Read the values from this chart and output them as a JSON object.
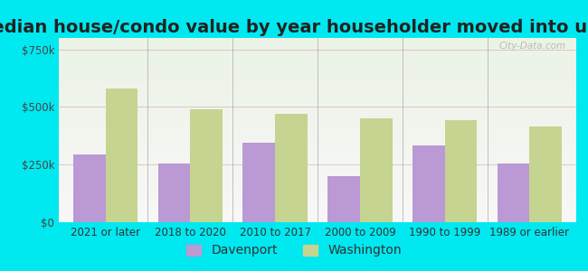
{
  "title": "Median house/condo value by year householder moved into unit",
  "categories": [
    "2021 or later",
    "2018 to 2020",
    "2010 to 2017",
    "2000 to 2009",
    "1990 to 1999",
    "1989 or earlier"
  ],
  "davenport": [
    295000,
    255000,
    345000,
    200000,
    335000,
    255000
  ],
  "washington": [
    580000,
    490000,
    470000,
    450000,
    445000,
    415000
  ],
  "davenport_color": "#bb99d4",
  "washington_color": "#c5d490",
  "background_outer": "#00e8f0",
  "background_inner": "#ddeedd",
  "yticks": [
    0,
    250000,
    500000,
    750000
  ],
  "ylabels": [
    "$0",
    "$250k",
    "$500k",
    "$750k"
  ],
  "ylim": [
    0,
    800000
  ],
  "bar_width": 0.38,
  "title_fontsize": 14,
  "axis_fontsize": 8.5,
  "legend_fontsize": 10,
  "watermark": "City-Data.com"
}
